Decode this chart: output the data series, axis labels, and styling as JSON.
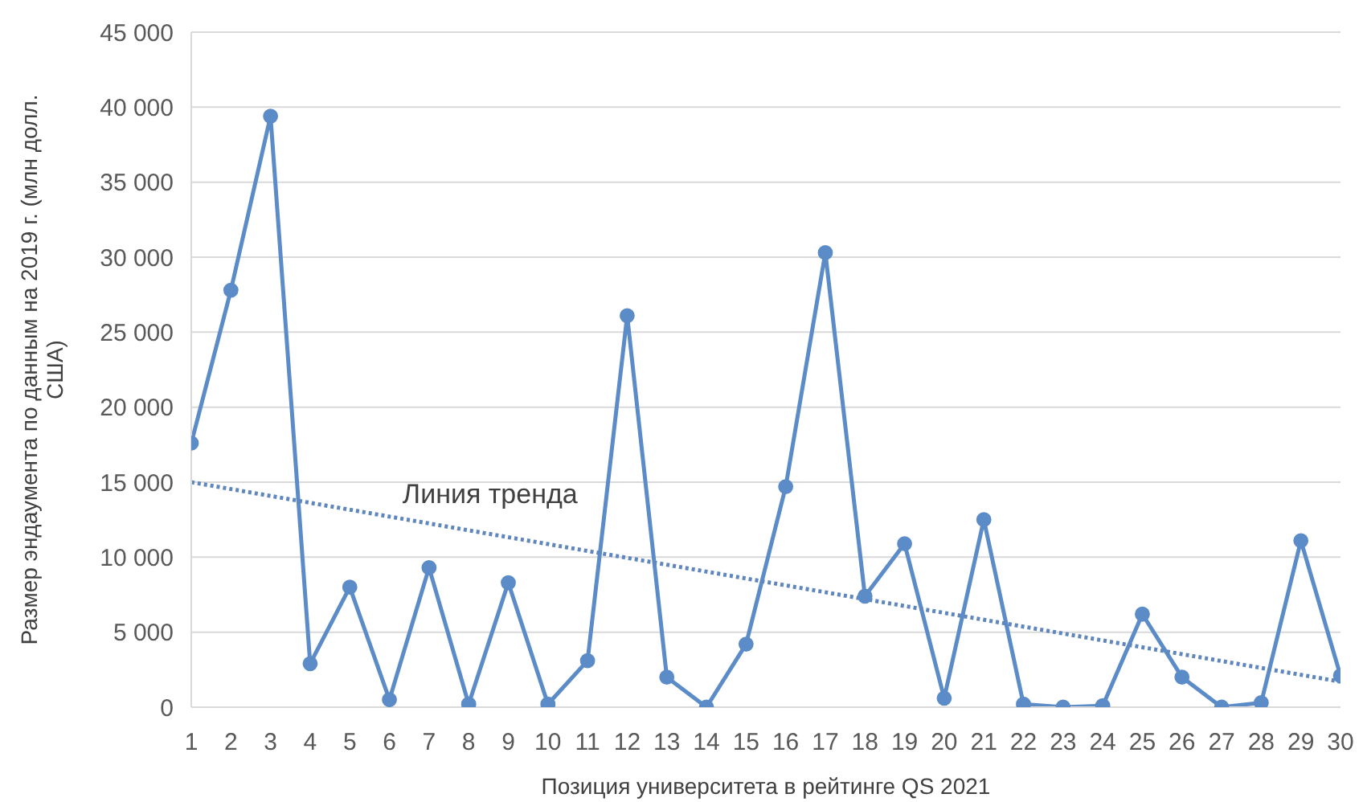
{
  "chart_data": {
    "type": "line",
    "xlabel": "Позиция университета в рейтинге QS 2021",
    "ylabel": "Размер эндаумента по данным на 2019 г. (млн долл. США)",
    "x": [
      1,
      2,
      3,
      4,
      5,
      6,
      7,
      8,
      9,
      10,
      11,
      12,
      13,
      14,
      15,
      16,
      17,
      18,
      19,
      20,
      21,
      22,
      23,
      24,
      25,
      26,
      27,
      28,
      29,
      30
    ],
    "xlim": [
      1,
      30
    ],
    "xticks": [
      1,
      2,
      3,
      4,
      5,
      6,
      7,
      8,
      9,
      10,
      11,
      12,
      13,
      14,
      15,
      16,
      17,
      18,
      19,
      20,
      21,
      22,
      23,
      24,
      25,
      26,
      27,
      28,
      29,
      30
    ],
    "ylim": [
      0,
      45000
    ],
    "yticks": [
      {
        "value": 0,
        "label": "0"
      },
      {
        "value": 5000,
        "label": "5 000"
      },
      {
        "value": 10000,
        "label": "10 000"
      },
      {
        "value": 15000,
        "label": "15 000"
      },
      {
        "value": 20000,
        "label": "20 000"
      },
      {
        "value": 25000,
        "label": "25 000"
      },
      {
        "value": 30000,
        "label": "30 000"
      },
      {
        "value": 35000,
        "label": "35 000"
      },
      {
        "value": 40000,
        "label": "40 000"
      },
      {
        "value": 45000,
        "label": "45 000"
      }
    ],
    "grid": "y",
    "marker": "circle",
    "series": [
      {
        "color": "#5b8cc8",
        "values": [
          17600,
          27800,
          39400,
          2900,
          8000,
          500,
          9300,
          200,
          8300,
          200,
          3100,
          26100,
          2000,
          0,
          4200,
          14700,
          30300,
          7400,
          10900,
          600,
          12500,
          200,
          0,
          100,
          6200,
          2000,
          0,
          300,
          11100,
          2100
        ]
      },
      {
        "name": "Линия тренда",
        "type": "line",
        "x": [
          1,
          30
        ],
        "values": [
          15000,
          1700
        ],
        "color": "#5f87bd",
        "line_style": "dotted",
        "marker": "none"
      }
    ]
  }
}
